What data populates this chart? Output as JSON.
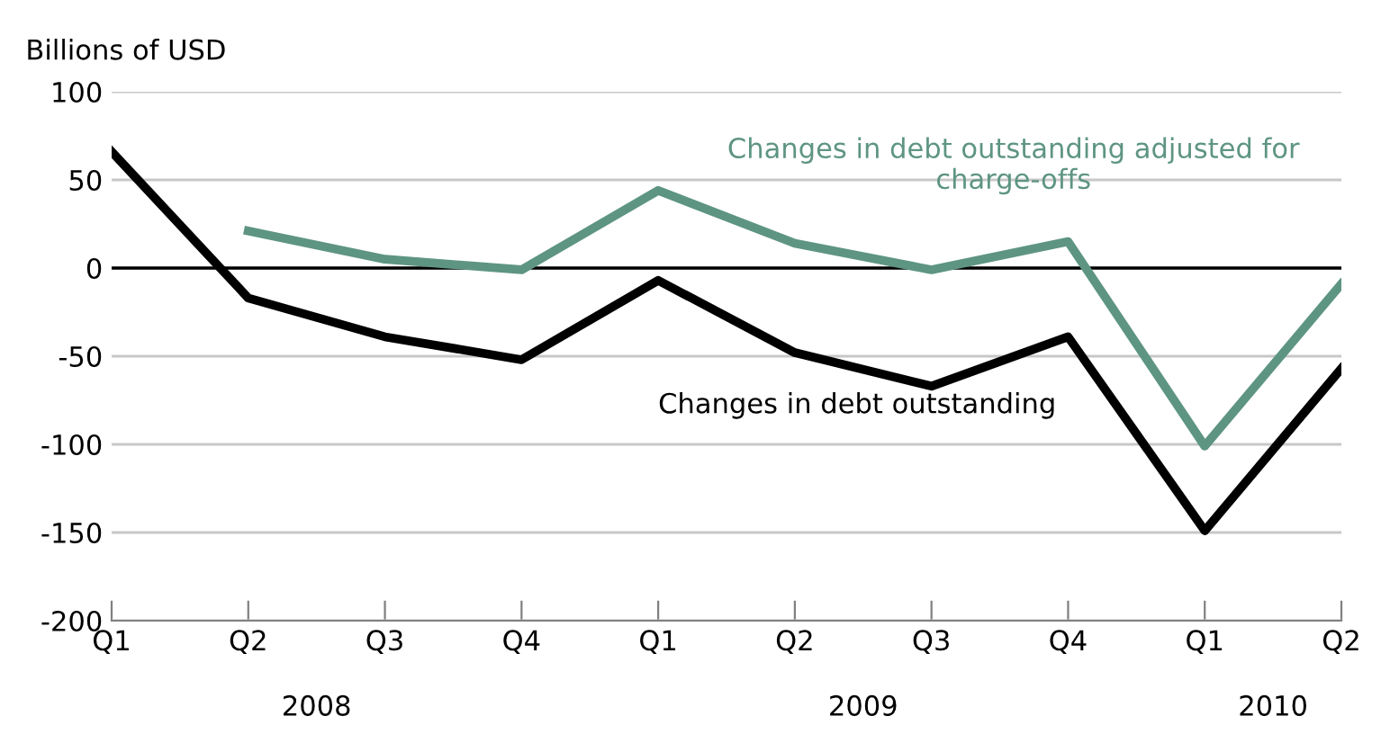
{
  "chart_data": {
    "type": "line",
    "ylabel": "Billions of USD",
    "categories": [
      "Q1",
      "Q2",
      "Q3",
      "Q4",
      "Q1",
      "Q2",
      "Q3",
      "Q4",
      "Q1",
      "Q2"
    ],
    "series": [
      {
        "name": "Changes in debt outstanding",
        "color": "#000000",
        "values": [
          66,
          -17,
          -39,
          -52,
          -7,
          -48,
          -67,
          -39,
          -149,
          -57
        ]
      },
      {
        "name": "Changes in debt outstanding adjusted for charge-offs",
        "color": "#5e9582",
        "values": [
          null,
          21,
          5,
          -1,
          44,
          14,
          -1,
          15,
          -101,
          -9
        ]
      }
    ],
    "ylim": [
      -200,
      100
    ],
    "yticks": [
      -200,
      -150,
      -100,
      -50,
      0,
      50,
      100
    ],
    "grid": "y",
    "ref_lines": [
      {
        "axis": "y",
        "value": 0,
        "color": "#000000"
      }
    ],
    "annotations": [
      "2008",
      "2009",
      "2010"
    ],
    "marker": "none",
    "line_style": "solid",
    "legend": false
  }
}
